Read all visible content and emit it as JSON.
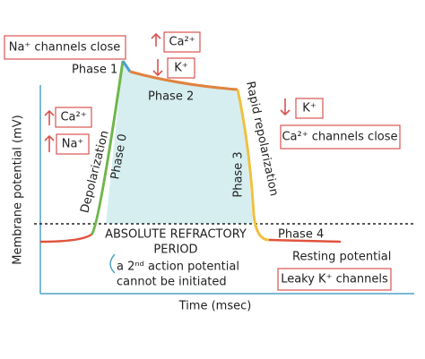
{
  "axes": {
    "y_label": "Membrane potential (mV)",
    "x_label": "Time (msec)"
  },
  "phases": {
    "phase0": "Phase 0",
    "phase1": "Phase 1",
    "phase2": "Phase 2",
    "phase3": "Phase 3",
    "phase4": "Phase 4"
  },
  "labels": {
    "depolarization": "Depolarization",
    "rapid_repolarization": "Rapid repolarization",
    "resting_potential": "Resting potential"
  },
  "boxes": {
    "na_close": "Na⁺ channels close",
    "ca_top": "Ca²⁺",
    "k_top": "K⁺",
    "k_right": "K⁺",
    "ca_close": "Ca²⁺ channels close",
    "ca_left": "Ca²⁺",
    "na_left": "Na⁺",
    "leaky_k": "Leaky K⁺ channels"
  },
  "refractory": {
    "title_1": "ABSOLUTE REFRACTORY",
    "title_2": "PERIOD",
    "note_1": "a 2ⁿᵈ action potential",
    "note_2": "cannot be initiated"
  }
}
